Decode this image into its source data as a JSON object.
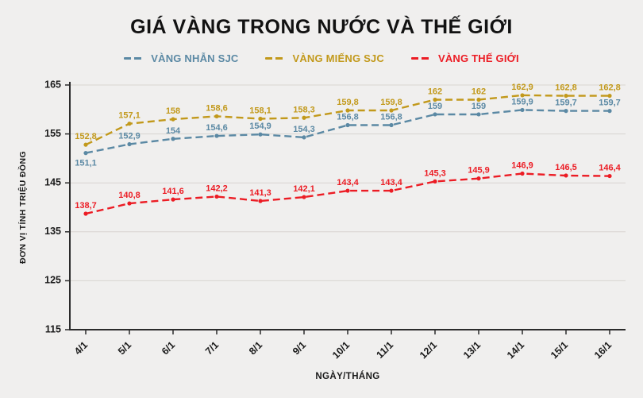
{
  "page": {
    "background": "#f0efee",
    "grid_color": "#d7d4d0",
    "axis_color": "#2b2b2b",
    "text_color": "#1a1a1a"
  },
  "chart_data": {
    "type": "line",
    "title": "GIÁ VÀNG TRONG NƯỚC VÀ THẾ GIỚI",
    "xlabel": "NGÀY/THÁNG",
    "ylabel": "ĐƠN VỊ TÍNH TRIỆU ĐỒNG",
    "categories": [
      "4/1",
      "5/1",
      "6/1",
      "7/1",
      "8/1",
      "9/1",
      "10/1",
      "11/1",
      "12/1",
      "13/1",
      "14/1",
      "15/1",
      "16/1"
    ],
    "y_ticks": [
      115,
      125,
      135,
      145,
      155,
      165
    ],
    "ylim": [
      115,
      165
    ],
    "grid": true,
    "legend_position": "top",
    "line_style": "dashed",
    "series": [
      {
        "name": "VÀNG NHẪN SJC",
        "color": "#5b89a4",
        "values": [
          151.1,
          152.9,
          154,
          154.6,
          154.9,
          154.3,
          156.8,
          156.8,
          159,
          159,
          159.9,
          159.7,
          159.7
        ],
        "labels": [
          "151,1",
          "152,9",
          "154",
          "154,6",
          "154,9",
          "154,3",
          "156,8",
          "156,8",
          "159",
          "159",
          "159,9",
          "159,7",
          "159,7"
        ]
      },
      {
        "name": "VÀNG MIẾNG SJC",
        "color": "#c2991b",
        "values": [
          152.8,
          157.1,
          158,
          158.6,
          158.1,
          158.3,
          159.8,
          159.8,
          162,
          162,
          162.9,
          162.8,
          162.8
        ],
        "labels": [
          "152,8",
          "157,1",
          "158",
          "158,6",
          "158,1",
          "158,3",
          "159,8",
          "159,8",
          "162",
          "162",
          "162,9",
          "162,8",
          "162,8"
        ]
      },
      {
        "name": "VÀNG THẾ GIỚI",
        "color": "#ec1c24",
        "values": [
          138.7,
          140.8,
          141.6,
          142.2,
          141.3,
          142.1,
          143.4,
          143.4,
          145.3,
          145.9,
          146.9,
          146.5,
          146.4
        ],
        "labels": [
          "138,7",
          "140,8",
          "141,6",
          "142,2",
          "141,3",
          "142,1",
          "143,4",
          "143,4",
          "145,3",
          "145,9",
          "146,9",
          "146,5",
          "146,4"
        ]
      }
    ]
  }
}
